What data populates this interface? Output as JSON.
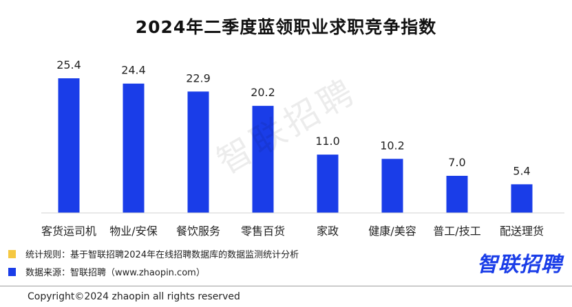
{
  "chart_data": {
    "type": "bar",
    "title": "2024年二季度蓝领职业求职竞争指数",
    "categories": [
      "客货运司机",
      "物业/安保",
      "餐饮服务",
      "零售百货",
      "家政",
      "健康/美容",
      "普工/技工",
      "配送理货"
    ],
    "values": [
      25.4,
      24.4,
      22.9,
      20.2,
      11.0,
      10.2,
      7.0,
      5.4
    ],
    "value_labels": [
      "25.4",
      "24.4",
      "22.9",
      "20.2",
      "11.0",
      "10.2",
      "7.0",
      "5.4"
    ],
    "xlabel": "",
    "ylabel": "",
    "ylim": [
      0,
      25.4
    ],
    "grid": false,
    "bar_color": "#1a3de8"
  },
  "watermark": "智联招聘",
  "legend_notes": [
    {
      "text": "统计规则：基于智联招聘2024年在线招聘数据库的数据监测统计分析",
      "color": "#f5c842"
    },
    {
      "text": "数据来源：智联招聘（www.zhaopin.com）",
      "color": "#1a3de8"
    }
  ],
  "brand": {
    "text": "智联招聘",
    "color": "#1a3de8"
  },
  "copyright": "Copyright©2024 zhaopin all rights reserved"
}
